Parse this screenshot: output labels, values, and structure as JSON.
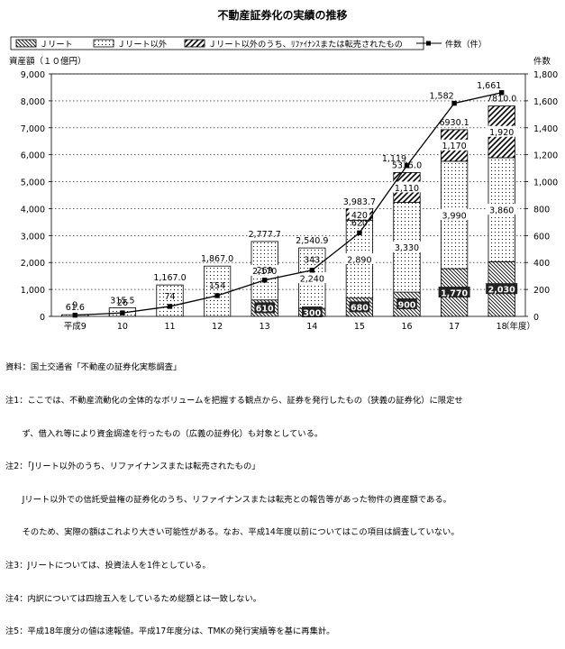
{
  "chart_data": {
    "type": "bar",
    "title": "不動産証券化の実績の推移",
    "left_axis_label": "資産額（１０億円）",
    "right_axis_label": "件数",
    "x_unit_label": "（年度）",
    "categories": [
      "平成9",
      "10",
      "11",
      "12",
      "13",
      "14",
      "15",
      "16",
      "17",
      "18"
    ],
    "left_ylim": [
      0,
      9000
    ],
    "left_ticks": [
      "0",
      "1,000",
      "2,000",
      "3,000",
      "4,000",
      "5,000",
      "6,000",
      "7,000",
      "8,000",
      "9,000"
    ],
    "right_ylim": [
      0,
      1800
    ],
    "right_ticks": [
      "0",
      "200",
      "400",
      "600",
      "800",
      "1,000",
      "1,200",
      "1,400",
      "1,600",
      "1,800"
    ],
    "series": [
      {
        "name": "Ｊリート",
        "pattern": "back-diagonal",
        "values": [
          0,
          0,
          0,
          0,
          610,
          300,
          680,
          900,
          1770,
          2030
        ],
        "labels": [
          "",
          "",
          "",
          "",
          "610",
          "300",
          "680",
          "900",
          "1,770",
          "2,030"
        ]
      },
      {
        "name": "Ｊリート以外",
        "pattern": "dots",
        "values": [
          61.6,
          315.5,
          1167.0,
          1867.0,
          2170,
          2240,
          2890,
          3330,
          3990,
          3860
        ],
        "labels": [
          "",
          "",
          "",
          "",
          "2,170",
          "2,240",
          "2,890",
          "3,330",
          "3,990",
          "3,860"
        ]
      },
      {
        "name": "Ｊリート以外のうち、ﾘﾌｧｲﾅﾝｽまたは転売されたもの",
        "pattern": "forward-diagonal",
        "values": [
          0,
          0,
          0,
          0,
          0,
          0,
          420,
          1110,
          1170,
          1920
        ],
        "labels": [
          "",
          "",
          "",
          "",
          "",
          "",
          "420",
          "1,110",
          "1,170",
          "1,920"
        ]
      }
    ],
    "totals": [
      61.6,
      315.5,
      1167.0,
      1867.0,
      2777.7,
      2540.9,
      3983.7,
      5335.0,
      6930.1,
      7810.0
    ],
    "total_labels": [
      "61.6",
      "315.5",
      "1,167.0",
      "1,867.0",
      "2,777.7",
      "2,540.9",
      "3,983.7",
      "5335.0",
      "6930.1",
      "7810.0"
    ],
    "line": {
      "name": "件数（件）",
      "axis": "right",
      "values": [
        9,
        26,
        74,
        154,
        269,
        343,
        620,
        1119,
        1582,
        1661
      ],
      "labels": [
        "9",
        "26",
        "74",
        "154",
        "269",
        "343",
        "620",
        "1,119",
        "1,582",
        "1,661"
      ]
    },
    "legend_position": "top"
  },
  "notes": [
    "資料：国土交通省「不動産の証券化実態調査」",
    "注1：ここでは、不動産流動化の全体的なボリュームを把握する観点から、証券を発行したもの（狭義の証券化）に限定せ",
    "　　ず、借入れ等により資金調達を行ったもの（広義の証券化）も対象としている。",
    "注2：「Jリート以外のうち、リファイナンスまたは転売されたもの」",
    "　　Jリート以外での信託受益権の証券化のうち、リファイナンスまたは転売との報告等があった物件の資産額である。",
    "　　そのため、実際の額はこれより大きい可能性がある。なお、平成14年度以前についてはこの項目は調査していない。",
    "注3：Jリートについては、投資法人を1件としている。",
    "注4：内訳については四捨五入をしているため総額とは一致しない。",
    "注5：平成18年度分の値は速報値。平成17年度分は、TMKの発行実績等を基に再集計。"
  ]
}
